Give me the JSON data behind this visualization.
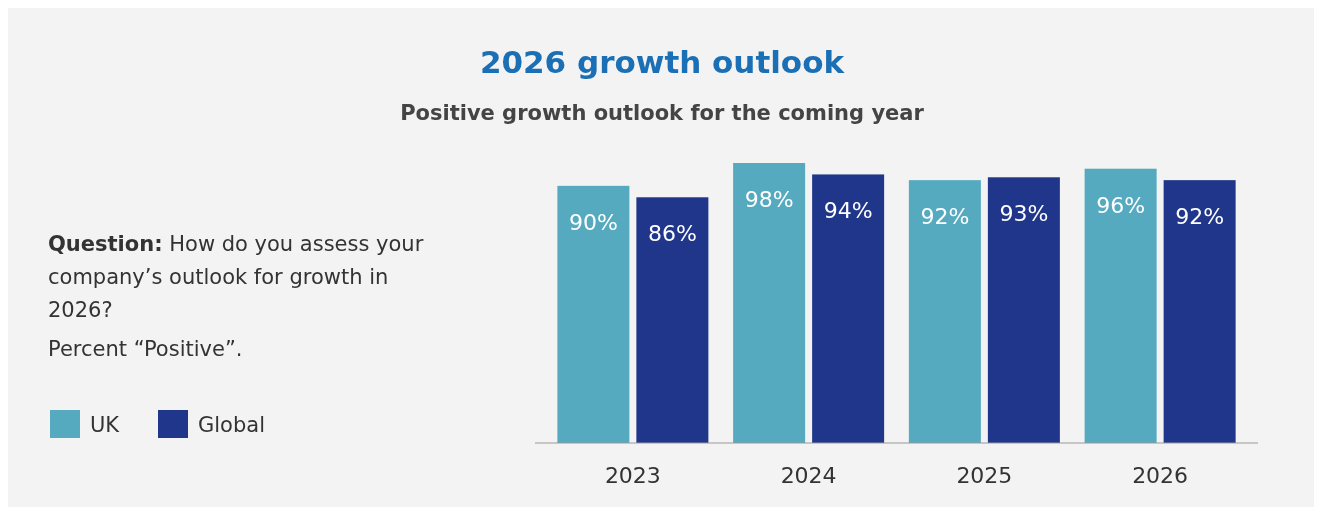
{
  "chart_data": {
    "type": "bar",
    "title": "2026 growth outlook",
    "subtitle": "Positive growth outlook for the coming year",
    "annotations": [
      "Question: How do you assess your company’s outlook for growth in 2026?",
      "Percent “Positive”."
    ],
    "categories": [
      "2023",
      "2024",
      "2025",
      "2026"
    ],
    "series": [
      {
        "name": "UK",
        "color": "#55aabf",
        "values": [
          90,
          98,
          92,
          96
        ],
        "value_labels": [
          "90%",
          "98%",
          "92%",
          "96%"
        ]
      },
      {
        "name": "Global",
        "color": "#1f368a",
        "values": [
          86,
          94,
          93,
          92
        ],
        "value_labels": [
          "86%",
          "94%",
          "93%",
          "92%"
        ]
      }
    ],
    "legend": "left",
    "grid": false
  }
}
